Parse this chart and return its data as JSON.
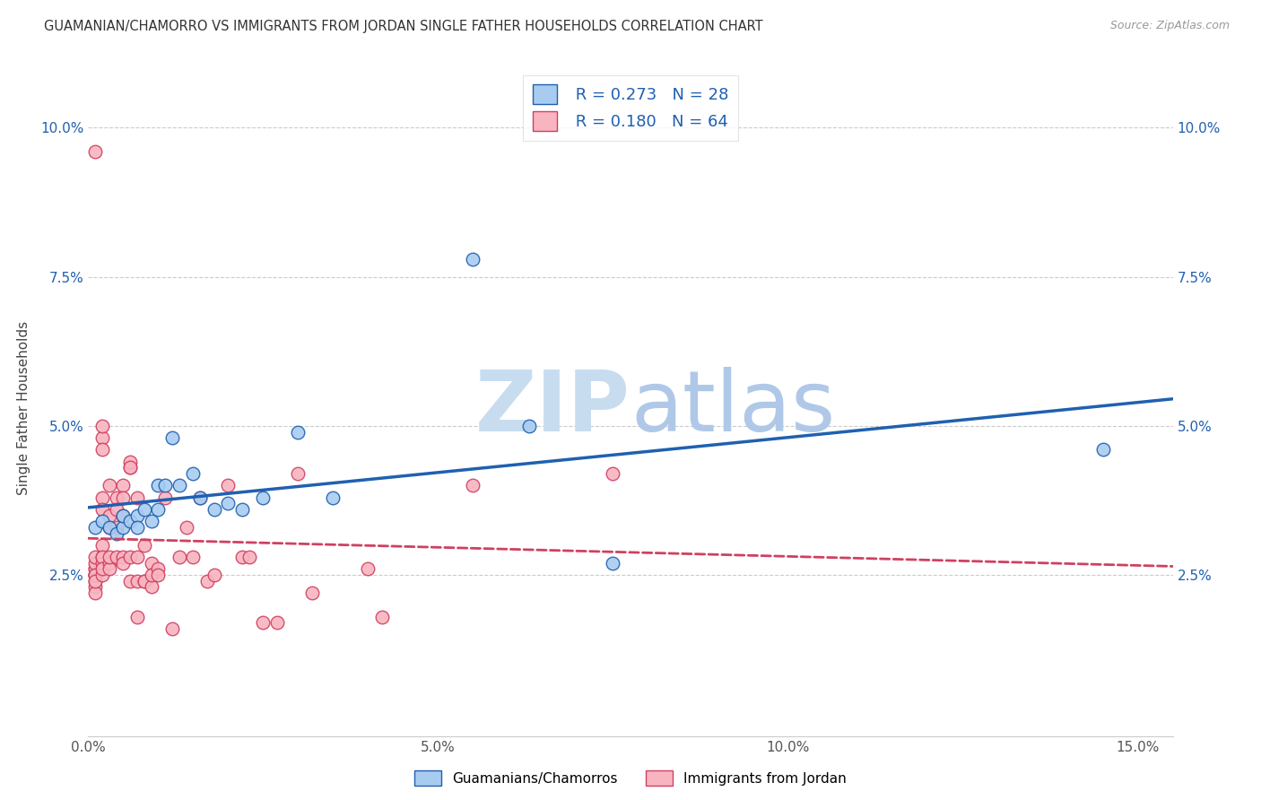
{
  "title": "GUAMANIAN/CHAMORRO VS IMMIGRANTS FROM JORDAN SINGLE FATHER HOUSEHOLDS CORRELATION CHART",
  "source": "Source: ZipAtlas.com",
  "ylabel": "Single Father Households",
  "xlim": [
    0.0,
    0.155
  ],
  "ylim": [
    -0.002,
    0.108
  ],
  "xticks": [
    0.0,
    0.05,
    0.1,
    0.15
  ],
  "xtick_labels": [
    "0.0%",
    "5.0%",
    "10.0%",
    "15.0%"
  ],
  "yticks": [
    0.025,
    0.05,
    0.075,
    0.1
  ],
  "ytick_labels": [
    "2.5%",
    "5.0%",
    "7.5%",
    "10.0%"
  ],
  "legend_labels": [
    "Guamanians/Chamorros",
    "Immigrants from Jordan"
  ],
  "legend_r_blue": "R = 0.273",
  "legend_n_blue": "N = 28",
  "legend_r_pink": "R = 0.180",
  "legend_n_pink": "N = 64",
  "color_blue": "#A8CCF0",
  "color_pink": "#F8B4C0",
  "line_color_blue": "#2060B0",
  "line_color_pink": "#D04060",
  "watermark_zip": "ZIP",
  "watermark_atlas": "atlas",
  "blue_x": [
    0.001,
    0.002,
    0.003,
    0.004,
    0.005,
    0.005,
    0.006,
    0.007,
    0.007,
    0.008,
    0.009,
    0.01,
    0.01,
    0.011,
    0.012,
    0.013,
    0.015,
    0.016,
    0.018,
    0.02,
    0.022,
    0.025,
    0.03,
    0.035,
    0.055,
    0.063,
    0.075,
    0.145
  ],
  "blue_y": [
    0.033,
    0.034,
    0.033,
    0.032,
    0.033,
    0.035,
    0.034,
    0.035,
    0.033,
    0.036,
    0.034,
    0.036,
    0.04,
    0.04,
    0.048,
    0.04,
    0.042,
    0.038,
    0.036,
    0.037,
    0.036,
    0.038,
    0.049,
    0.038,
    0.078,
    0.05,
    0.027,
    0.046
  ],
  "pink_x": [
    0.001,
    0.001,
    0.001,
    0.001,
    0.001,
    0.001,
    0.001,
    0.001,
    0.001,
    0.001,
    0.001,
    0.001,
    0.001,
    0.002,
    0.002,
    0.002,
    0.002,
    0.002,
    0.002,
    0.002,
    0.002,
    0.002,
    0.002,
    0.002,
    0.003,
    0.003,
    0.003,
    0.003,
    0.003,
    0.003,
    0.004,
    0.004,
    0.004,
    0.004,
    0.005,
    0.005,
    0.005,
    0.005,
    0.005,
    0.006,
    0.006,
    0.006,
    0.006,
    0.006,
    0.007,
    0.007,
    0.007,
    0.007,
    0.008,
    0.008,
    0.008,
    0.009,
    0.009,
    0.009,
    0.01,
    0.01,
    0.011,
    0.012,
    0.013,
    0.014,
    0.015,
    0.016,
    0.017,
    0.018,
    0.02,
    0.022,
    0.023,
    0.025,
    0.027,
    0.03,
    0.032,
    0.04,
    0.042,
    0.055,
    0.075
  ],
  "pink_y": [
    0.025,
    0.025,
    0.026,
    0.024,
    0.023,
    0.022,
    0.025,
    0.026,
    0.027,
    0.028,
    0.025,
    0.024,
    0.096,
    0.028,
    0.027,
    0.025,
    0.03,
    0.028,
    0.026,
    0.048,
    0.046,
    0.05,
    0.038,
    0.036,
    0.033,
    0.04,
    0.035,
    0.027,
    0.026,
    0.028,
    0.038,
    0.036,
    0.033,
    0.028,
    0.035,
    0.04,
    0.038,
    0.028,
    0.027,
    0.043,
    0.044,
    0.043,
    0.028,
    0.024,
    0.038,
    0.028,
    0.024,
    0.018,
    0.024,
    0.03,
    0.024,
    0.027,
    0.023,
    0.025,
    0.026,
    0.025,
    0.038,
    0.016,
    0.028,
    0.033,
    0.028,
    0.038,
    0.024,
    0.025,
    0.04,
    0.028,
    0.028,
    0.017,
    0.017,
    0.042,
    0.022,
    0.026,
    0.018,
    0.04,
    0.042
  ]
}
